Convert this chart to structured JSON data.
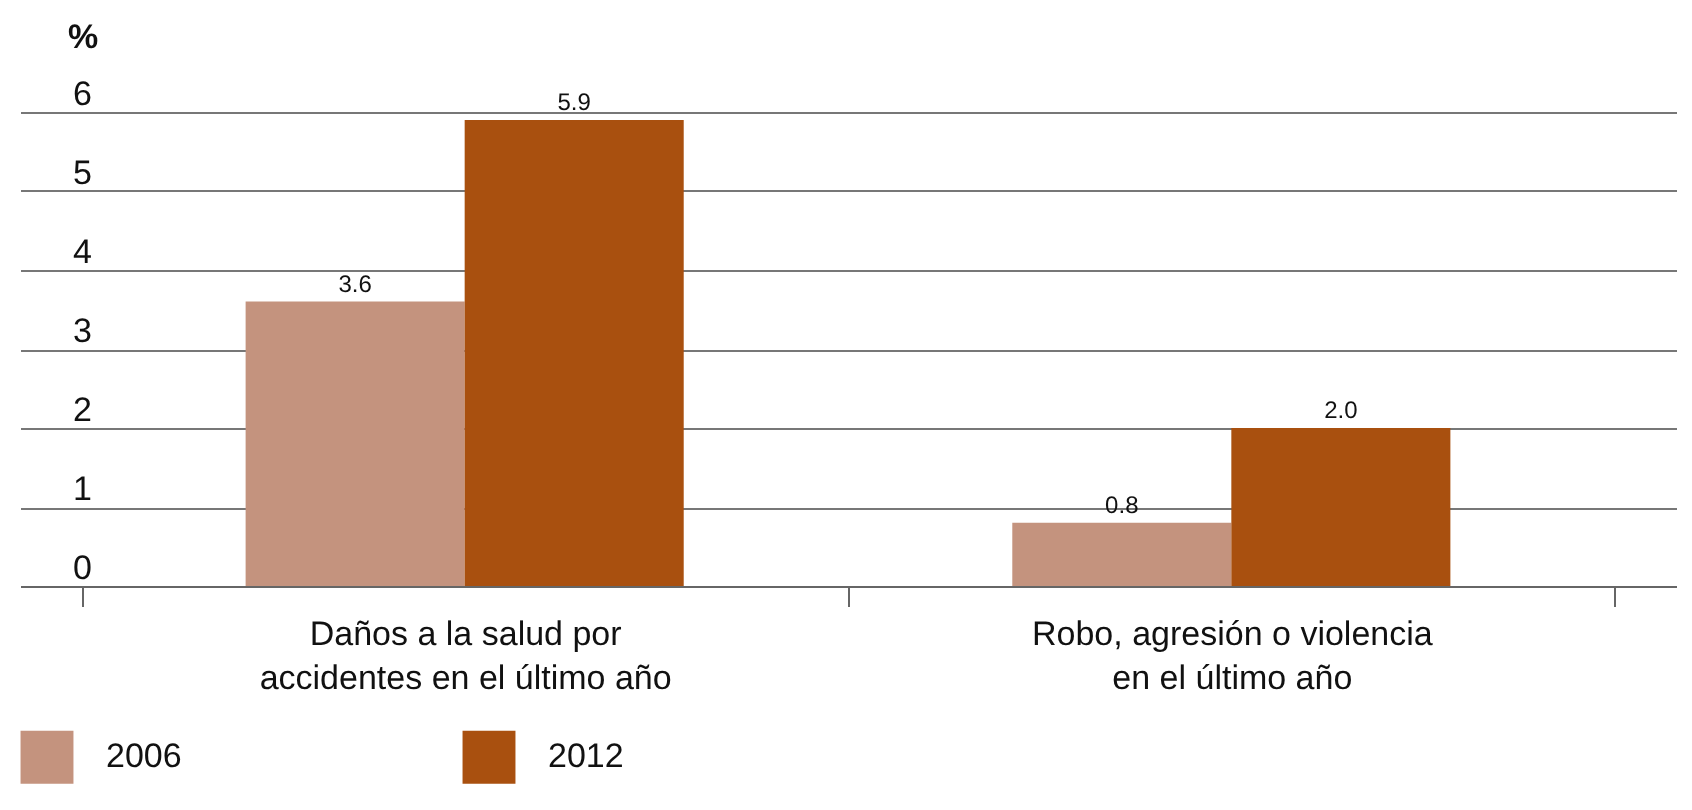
{
  "chart_data": {
    "type": "bar",
    "ylabel": "%",
    "categories": [
      "Daños a la salud por accidentes en el último año",
      "Robo, agresión o violencia en el último año"
    ],
    "series": [
      {
        "name": "2006",
        "color": "#c4937e",
        "values": [
          3.6,
          0.8
        ],
        "value_labels": [
          "3.6",
          "0.8"
        ]
      },
      {
        "name": "2012",
        "color": "#a9500f",
        "values": [
          5.9,
          2.0
        ],
        "value_labels": [
          "5.9",
          "2.0"
        ]
      }
    ],
    "ylim": [
      0,
      6
    ],
    "yticks": [
      0,
      1,
      2,
      3,
      4,
      5,
      6
    ],
    "grid": "y",
    "legend": "bottom"
  }
}
